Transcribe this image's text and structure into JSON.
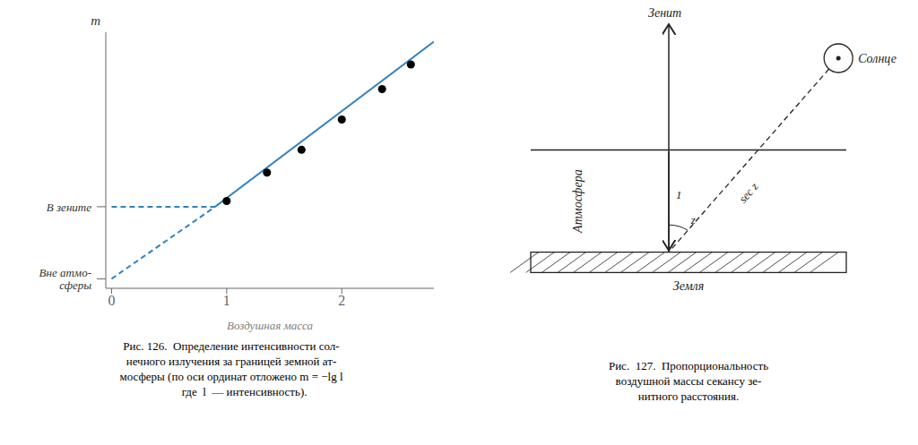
{
  "chart_data": [
    {
      "type": "line",
      "xlabel": "Воздушная масса",
      "ylabel": "m",
      "xlim": [
        -0.05,
        2.8
      ],
      "ylim": [
        -0.05,
        1.3
      ],
      "xticks": [
        0,
        1,
        2
      ],
      "tick_labels": "x",
      "series": [
        {
          "type": "line",
          "line_style": "dashed",
          "x": [
            0.0,
            0.9
          ],
          "values": [
            0.0,
            0.38
          ]
        },
        {
          "type": "line",
          "line_style": "solid",
          "x": [
            0.9,
            2.8
          ],
          "values": [
            0.38,
            1.25
          ]
        },
        {
          "type": "scatter",
          "marker": "circle",
          "x": [
            1.0,
            1.35,
            1.65,
            2.0,
            2.35,
            2.6
          ],
          "values": [
            0.41,
            0.56,
            0.68,
            0.84,
            1.0,
            1.13
          ]
        },
        {
          "type": "line",
          "line_style": "dashed",
          "x": [
            0,
            0.9
          ],
          "values": [
            0.38,
            0.38
          ]
        }
      ],
      "annotations": [
        {
          "text": "В зените",
          "y": 0.38
        },
        {
          "text": "Вне атмо-\nсферы",
          "y": 0.0
        }
      ],
      "caption": [
        "Рис. 126.  Определение интенсивности сол-",
        "нечного излучения за границей земной ат-",
        "мосферы (по оси ординат отложено m = −lg l",
        "         где  l  — интенсивность)."
      ]
    },
    {
      "type": "diagram",
      "annotations": [
        {
          "text": "Зенит"
        },
        {
          "text": "Солнце"
        },
        {
          "text": "Атмосфера"
        },
        {
          "text": "Земля"
        },
        {
          "text": "z"
        },
        {
          "text": "sec z"
        },
        {
          "text": "1"
        }
      ],
      "caption": [
        "Рис.  127.  Пропорциональность",
        "воздушной массы секансу зе-",
        "нитного расстояния."
      ]
    }
  ]
}
